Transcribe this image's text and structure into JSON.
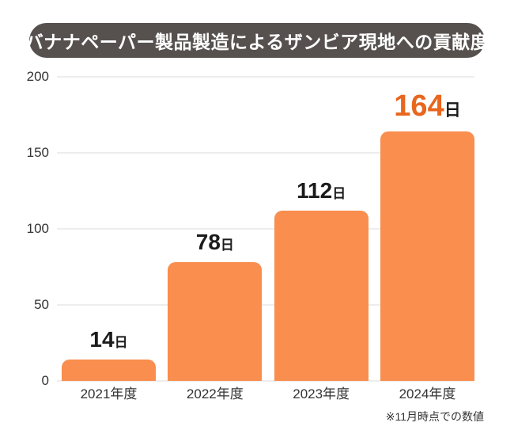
{
  "title": "バナナペーパー製品製造によるザンビア現地への貢献度",
  "footnote": "※11月時点での数値",
  "unit_suffix": "日",
  "colors": {
    "title_bg": "#56514F",
    "title_text": "#FFFFFF",
    "bar": "#F98E4E",
    "highlight_number": "#E8661D",
    "value_text": "#1B1B1B",
    "grid": "#EDEDED",
    "axis_text": "#333333",
    "footnote_text": "#333333",
    "background": "#FFFFFF"
  },
  "chart_data": {
    "type": "bar",
    "title": "バナナペーパー製品製造によるザンビア現地への貢献度",
    "categories": [
      "2021年度",
      "2022年度",
      "2023年度",
      "2024年度"
    ],
    "values": [
      14,
      78,
      112,
      164
    ],
    "value_labels": [
      "14日",
      "78日",
      "112日",
      "164日"
    ],
    "unit": "日",
    "xlabel": "",
    "ylabel": "",
    "ylim": [
      0,
      200
    ],
    "y_ticks": [
      0,
      50,
      100,
      150,
      200
    ],
    "grid": "horizontal",
    "legend": "none",
    "bar_color": "#F98E4E",
    "highlight_index": 3,
    "highlight_number_color": "#E8661D",
    "annotation": "※11月時点での数値"
  }
}
